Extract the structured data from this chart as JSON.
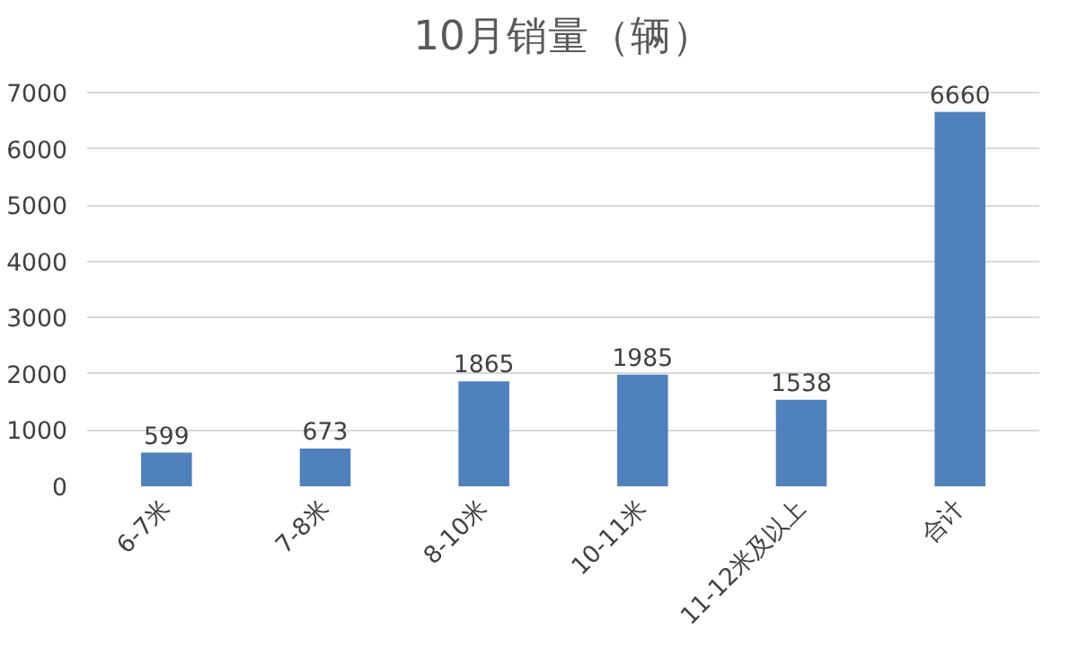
{
  "chart_data": {
    "type": "bar",
    "title": "10月销量（辆）",
    "categories": [
      "6-7米",
      "7-8米",
      "8-10米",
      "10-11米",
      "11-12米及以上",
      "合计"
    ],
    "values": [
      599,
      673,
      1865,
      1985,
      1538,
      6660
    ],
    "color": "#4f81bd",
    "ylim": [
      0,
      7000
    ],
    "yticks": [
      0,
      1000,
      2000,
      3000,
      4000,
      5000,
      6000,
      7000
    ],
    "grid": "y",
    "data_labels": true
  }
}
